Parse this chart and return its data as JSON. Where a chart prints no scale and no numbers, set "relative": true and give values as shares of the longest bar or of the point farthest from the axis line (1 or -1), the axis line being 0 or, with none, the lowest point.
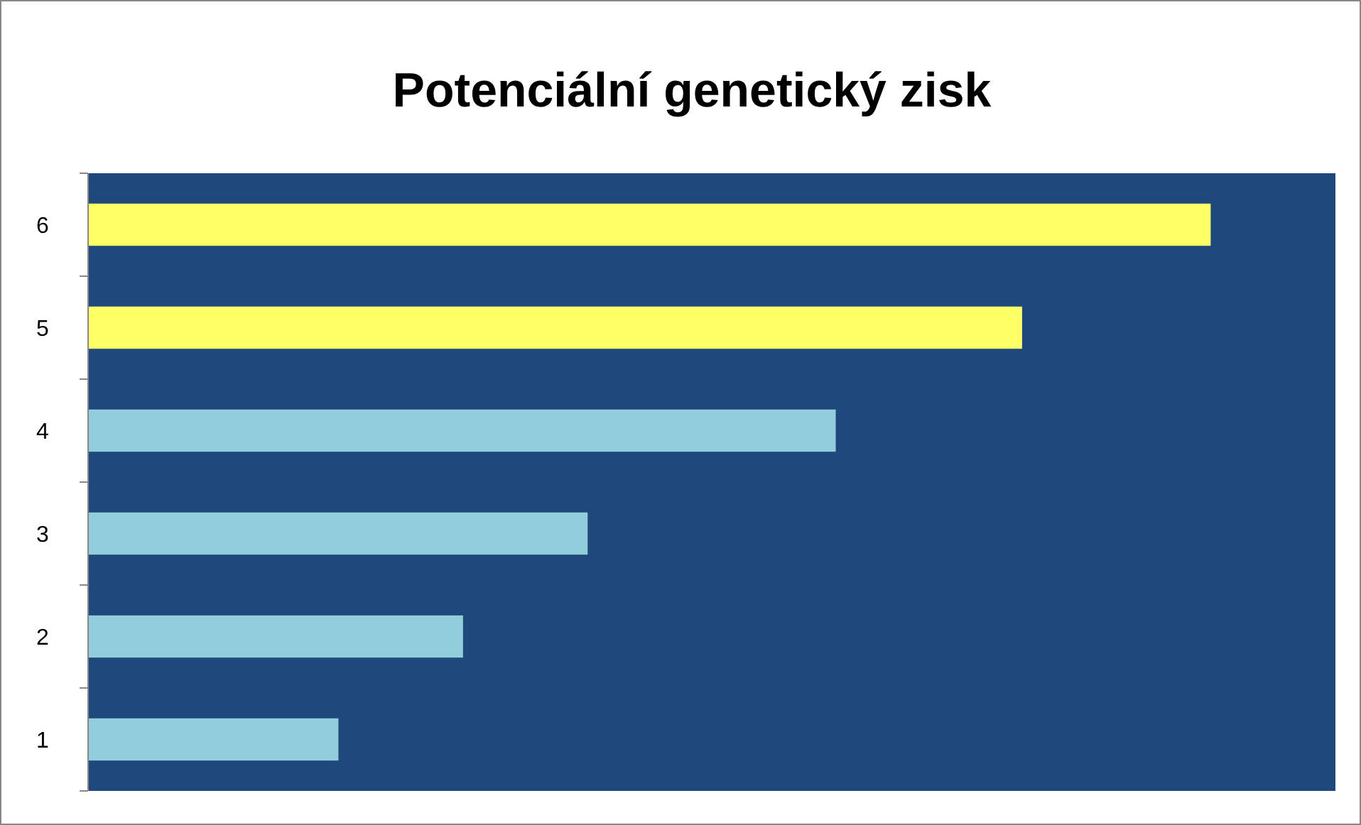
{
  "chart_data": {
    "type": "bar",
    "orientation": "horizontal",
    "relative": true,
    "title": "Potenciální genetický zisk",
    "categories": [
      "6",
      "5",
      "4",
      "3",
      "2",
      "1"
    ],
    "values": [
      1,
      0.832,
      0.666,
      0.445,
      0.334,
      0.223
    ],
    "colors": [
      "#ffff66",
      "#ffff66",
      "#92cddc",
      "#92cddc",
      "#92cddc",
      "#92cddc"
    ],
    "grid": false
  }
}
